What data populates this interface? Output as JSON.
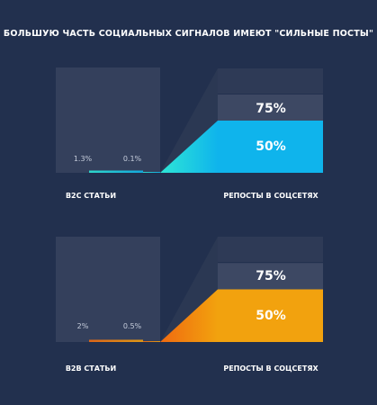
{
  "chart_data": {
    "title": "БОЛЬШУЮ ЧАСТЬ СОЦИАЛЬНЫХ СИГНАЛОВ ИМЕЮТ \"СИЛЬНЫЕ ПОСТЫ\"",
    "type": "bar",
    "charts": [
      {
        "id": "b2c",
        "left_label": "B2C СТАТЬИ",
        "right_label": "РЕПОСТЫ В СОЦСЕТЯХ",
        "small_values": [
          {
            "value": 1.3,
            "label": "1.3%"
          },
          {
            "value": 0.1,
            "label": "0.1%"
          }
        ],
        "big_values": [
          {
            "value": 75,
            "label": "75%"
          },
          {
            "value": 50,
            "label": "50%"
          }
        ],
        "colors": {
          "start": "#2ee6d6",
          "end": "#0fb4ec"
        }
      },
      {
        "id": "b2b",
        "left_label": "B2B СТАТЬИ",
        "right_label": "РЕПОСТЫ В СОЦСЕТЯХ",
        "small_values": [
          {
            "value": 2,
            "label": "2%"
          },
          {
            "value": 0.5,
            "label": "0.5%"
          }
        ],
        "big_values": [
          {
            "value": 75,
            "label": "75%"
          },
          {
            "value": 50,
            "label": "50%"
          }
        ],
        "colors": {
          "start": "#f06a10",
          "end": "#f2a20e"
        }
      }
    ]
  }
}
